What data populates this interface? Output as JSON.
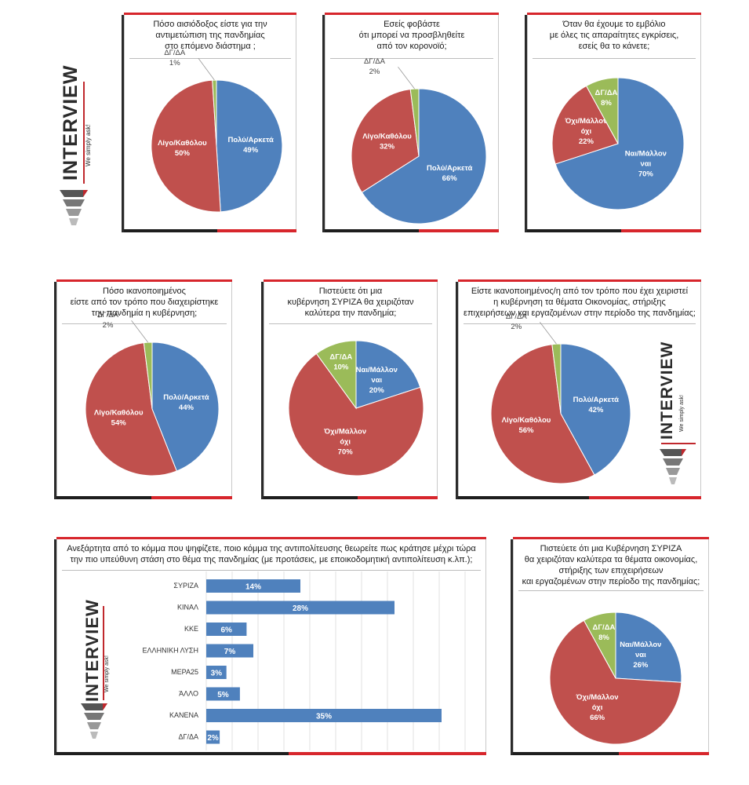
{
  "colors": {
    "blue": "#4f81bd",
    "red": "#c0504d",
    "green": "#9bbb59",
    "accent": "#d7262c",
    "dark": "#1e1e1e"
  },
  "logo": {
    "word": "INTERVIEW",
    "tagline": "We simply ask!"
  },
  "chart_data": [
    {
      "type": "pie",
      "title_lines": [
        "Πόσο αισιόδοξος είστε για την",
        "αντιμετώπιση της πανδημίας",
        "στο επόμενο διάστημα ;"
      ],
      "slices": [
        {
          "label": "Πολύ/Αρκετά",
          "value": 49,
          "color": "#4f81bd"
        },
        {
          "label": "Λίγο/Καθόλου",
          "value": 50,
          "color": "#c0504d"
        },
        {
          "label": "ΔΓ/ΔΑ",
          "value": 1,
          "color": "#9bbb59"
        }
      ]
    },
    {
      "type": "pie",
      "title_lines": [
        "Εσείς φοβάστε",
        "ότι μπορεί να προσβληθείτε",
        "από τον κορονοϊό;"
      ],
      "slices": [
        {
          "label": "Πολύ/Αρκετά",
          "value": 66,
          "color": "#4f81bd"
        },
        {
          "label": "Λίγο/Καθόλου",
          "value": 32,
          "color": "#c0504d"
        },
        {
          "label": "ΔΓ/ΔΑ",
          "value": 2,
          "color": "#9bbb59"
        }
      ]
    },
    {
      "type": "pie",
      "title_lines": [
        "Όταν θα έχουμε το εμβόλιο",
        "με όλες τις απαραίτητες εγκρίσεις,",
        "εσείς θα το κάνετε;"
      ],
      "slices": [
        {
          "label": "Ναι/Μάλλον ναι",
          "value": 70,
          "color": "#4f81bd"
        },
        {
          "label": "Όχι/Μάλλον όχι",
          "value": 22,
          "color": "#c0504d"
        },
        {
          "label": "ΔΓ/ΔΑ",
          "value": 8,
          "color": "#9bbb59"
        }
      ]
    },
    {
      "type": "pie",
      "title_lines": [
        "Πόσο ικανοποιημένος",
        "είστε από τον τρόπο που διαχειρίστηκε",
        "την πανδημία η κυβέρνηση;"
      ],
      "slices": [
        {
          "label": "Πολύ/Αρκετά",
          "value": 44,
          "color": "#4f81bd"
        },
        {
          "label": "Λίγο/Καθόλου",
          "value": 54,
          "color": "#c0504d"
        },
        {
          "label": "ΔΓ/ΔΑ",
          "value": 2,
          "color": "#9bbb59"
        }
      ]
    },
    {
      "type": "pie",
      "title_lines": [
        "Πιστεύετε ότι μια",
        "κυβέρνηση ΣΥΡΙΖΑ θα χειριζόταν",
        "καλύτερα την πανδημία;"
      ],
      "slices": [
        {
          "label": "Ναι/Μάλλον ναι",
          "value": 20,
          "color": "#4f81bd"
        },
        {
          "label": "Όχι/Μάλλον όχι",
          "value": 70,
          "color": "#c0504d"
        },
        {
          "label": "ΔΓ/ΔΑ",
          "value": 10,
          "color": "#9bbb59"
        }
      ]
    },
    {
      "type": "pie",
      "title_lines": [
        "Είστε ικανοποιημένος/η από τον τρόπο που έχει χειριστεί",
        "η κυβέρνηση τα θέματα Οικονομίας, στήριξης",
        "επιχειρήσεων και εργαζομένων στην περίοδο της πανδημίας;"
      ],
      "slices": [
        {
          "label": "Πολύ/Αρκετά",
          "value": 42,
          "color": "#4f81bd"
        },
        {
          "label": "Λίγο/Καθόλου",
          "value": 56,
          "color": "#c0504d"
        },
        {
          "label": "ΔΓ/ΔΑ",
          "value": 2,
          "color": "#9bbb59"
        }
      ]
    },
    {
      "type": "bar",
      "orientation": "horizontal",
      "title_lines": [
        "Ανεξάρτητα από το κόμμα που ψηφίζετε, ποιο κόμμα της αντιπολίτευσης θεωρείτε πως κράτησε μέχρι τώρα",
        "την πιο υπεύθυνη στάση στο θέμα της πανδημίας (με προτάσεις, με εποικοδομητική αντιπολίτευση κ.λπ.);"
      ],
      "categories": [
        "ΣΥΡΙΖΑ",
        "ΚΙΝΑΛ",
        "ΚΚΕ",
        "ΕΛΛΗΝΙΚΗ ΛΥΣΗ",
        "ΜΕΡΑ25",
        "ΆΛΛΟ",
        "ΚΑΝΕΝΑ",
        "ΔΓ/ΔΑ"
      ],
      "values": [
        14,
        28,
        6,
        7,
        3,
        5,
        35,
        2
      ],
      "value_suffix": "%",
      "xlim": [
        0,
        35
      ],
      "grid": true
    },
    {
      "type": "pie",
      "title_lines": [
        "Πιστεύετε ότι μια Κυβέρνηση ΣΥΡΙΖΑ",
        "θα χειριζόταν καλύτερα τα θέματα οικονομίας,",
        "στήριξης των επιχειρήσεων",
        "και εργαζομένων στην περίοδο της πανδημίας;"
      ],
      "slices": [
        {
          "label": "Ναι/Μάλλον ναι",
          "value": 26,
          "color": "#4f81bd"
        },
        {
          "label": "Όχι/Μάλλον όχι",
          "value": 66,
          "color": "#c0504d"
        },
        {
          "label": "ΔΓ/ΔΑ",
          "value": 8,
          "color": "#9bbb59"
        }
      ]
    }
  ]
}
